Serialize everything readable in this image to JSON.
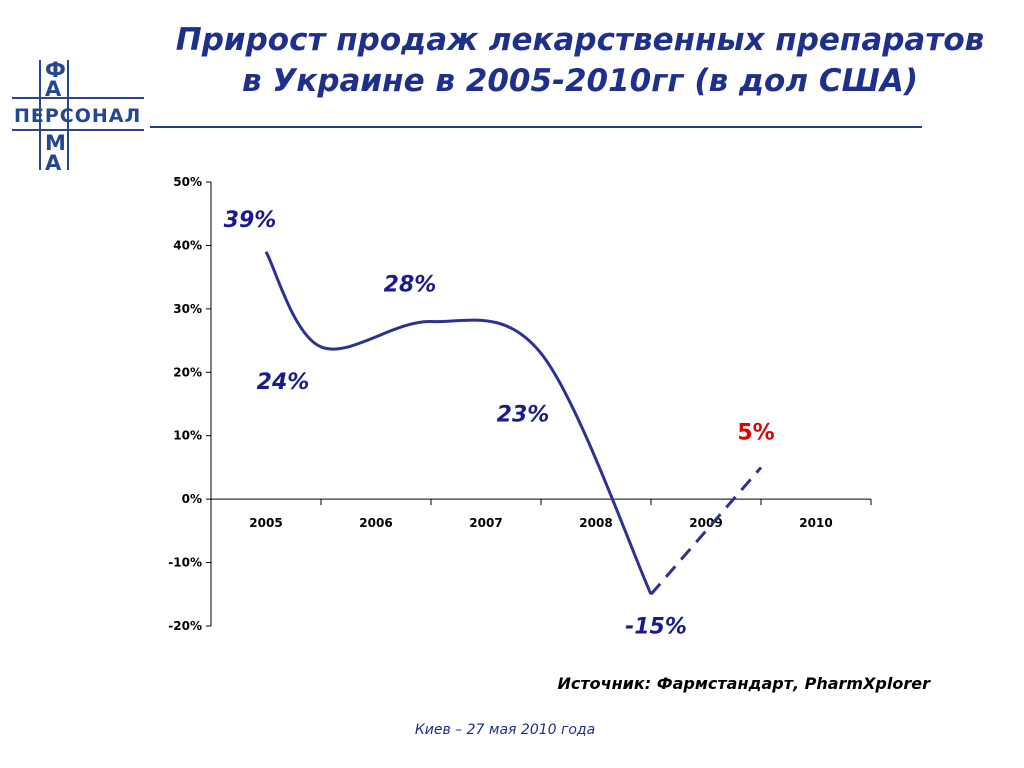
{
  "logo": {
    "word": "ПЕРСОНАЛ",
    "letters": [
      "Ф",
      "А",
      "М",
      "А"
    ]
  },
  "title": {
    "line1": "Прирост продаж лекарственных препаратов",
    "line2": "в Украине в 2005-2010гг (в дол США)"
  },
  "colors": {
    "title": "#1f2f8c",
    "line": "#2e3192",
    "label": "#1a1a8c",
    "highlight": "#e00000"
  },
  "chart_data": {
    "type": "line",
    "categories": [
      "2005",
      "2006",
      "2007",
      "2008",
      "2009",
      "2010"
    ],
    "yticks": [
      "50%",
      "40%",
      "30%",
      "20%",
      "10%",
      "0%",
      "-10%",
      "-20%"
    ],
    "ylim": [
      -20,
      50
    ],
    "grid": false,
    "series": [
      {
        "points_solid": [
          [
            2005,
            39
          ],
          [
            2005.5,
            24
          ],
          [
            2006.5,
            28
          ],
          [
            2007.5,
            23
          ],
          [
            2008.5,
            -15
          ]
        ],
        "points_dashed": [
          [
            2008.5,
            -15
          ],
          [
            2009.5,
            5
          ]
        ]
      }
    ],
    "annotations": [
      {
        "text": "39%",
        "x": 2005,
        "y": 39,
        "highlight": false
      },
      {
        "text": "24%",
        "x": 2005.5,
        "y": 24,
        "highlight": false
      },
      {
        "text": "28%",
        "x": 2006.5,
        "y": 28,
        "highlight": false
      },
      {
        "text": "23%",
        "x": 2007.5,
        "y": 23,
        "highlight": false
      },
      {
        "text": "-15%",
        "x": 2008.5,
        "y": -15,
        "highlight": false
      },
      {
        "text": "5%",
        "x": 2009.5,
        "y": 5,
        "highlight": true
      }
    ]
  },
  "source": "Источник: Фармстандарт, PharmXplorer",
  "footer": "Киев – 27 мая 2010 года"
}
